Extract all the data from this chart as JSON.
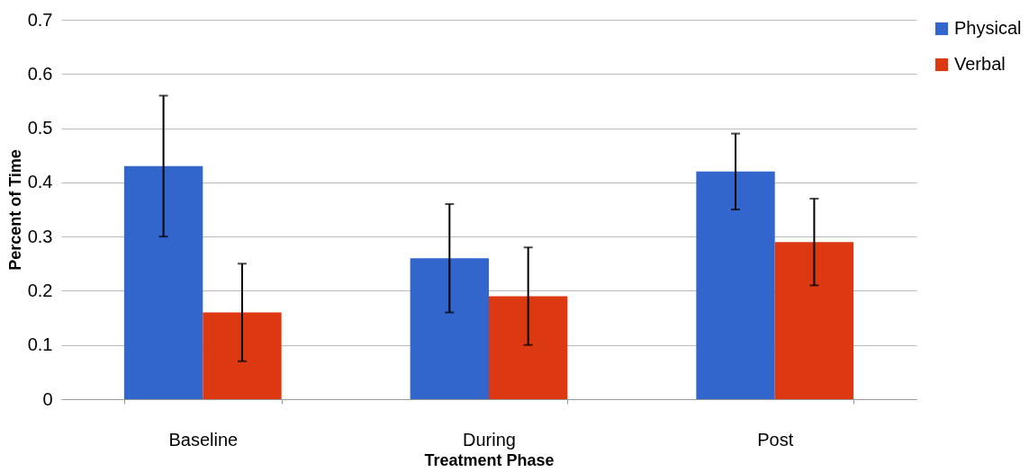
{
  "chart_data": {
    "type": "bar",
    "xlabel": "Treatment Phase",
    "ylabel": "Percent of Time",
    "categories": [
      "Baseline",
      "During",
      "Post"
    ],
    "series": [
      {
        "name": "Physical",
        "color": "#3366cc",
        "values": [
          0.43,
          0.26,
          0.42
        ],
        "errors": [
          [
            0.3,
            0.56
          ],
          [
            0.16,
            0.36
          ],
          [
            0.35,
            0.49
          ]
        ]
      },
      {
        "name": "Verbal",
        "color": "#dc3912",
        "values": [
          0.16,
          0.19,
          0.29
        ],
        "errors": [
          [
            0.07,
            0.25
          ],
          [
            0.1,
            0.28
          ],
          [
            0.21,
            0.37
          ]
        ]
      }
    ],
    "ylim": [
      0,
      0.7
    ],
    "yticks": [
      0,
      0.1,
      0.2,
      0.3,
      0.4,
      0.5,
      0.6,
      0.7
    ],
    "grid": "y",
    "legend": "top right"
  }
}
